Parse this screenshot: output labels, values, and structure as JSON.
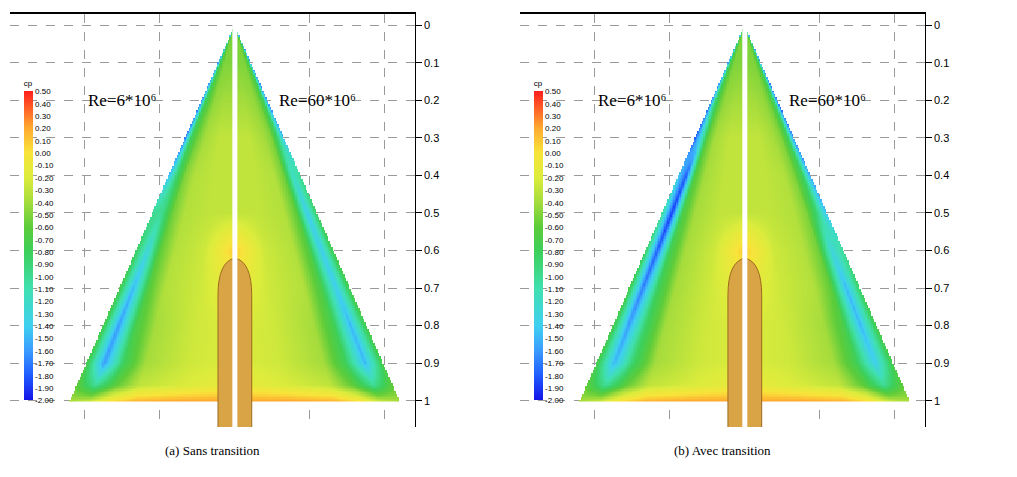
{
  "chart_data": [
    {
      "type": "heatmap",
      "caption": "(a) Sans transition",
      "xlim": [
        -0.6,
        0.48
      ],
      "xticks": [
        -0.4,
        -0.2,
        0.2,
        0.4
      ],
      "ylim": [
        1.07,
        -0.03
      ],
      "yticks": [
        0,
        0.1,
        0.2,
        0.3,
        0.4,
        0.5,
        0.6,
        0.7,
        0.8,
        0.9,
        1
      ],
      "grid": true,
      "tick_labels": "y",
      "colorbar": {
        "title": "cp",
        "range": [
          -2,
          0.5
        ],
        "ticks": [
          {
            "value": 0.5,
            "label": "0.50"
          },
          {
            "value": 0.4,
            "label": "0.40"
          },
          {
            "value": 0.3,
            "label": "0.30"
          },
          {
            "value": 0.2,
            "label": "0.20"
          },
          {
            "value": 0.1,
            "label": "0.10"
          },
          {
            "value": 0,
            "label": "0.00"
          },
          {
            "value": -0.1,
            "label": "-0.10"
          },
          {
            "value": -0.2,
            "label": "-0.20"
          },
          {
            "value": -0.3,
            "label": "-0.30"
          },
          {
            "value": -0.4,
            "label": "-0.40"
          },
          {
            "value": -0.5,
            "label": "-0.50"
          },
          {
            "value": -0.6,
            "label": "-0.60"
          },
          {
            "value": -0.7,
            "label": "-0.70"
          },
          {
            "value": -0.8,
            "label": "-0.80"
          },
          {
            "value": -0.9,
            "label": "-0.90"
          },
          {
            "value": -1.0,
            "label": "-1.00"
          },
          {
            "value": -1.1,
            "label": "-1.10"
          },
          {
            "value": -1.2,
            "label": "-1.20"
          },
          {
            "value": -1.3,
            "label": "-1.30"
          },
          {
            "value": -1.4,
            "label": "-1.40"
          },
          {
            "value": -1.5,
            "label": "-1.50"
          },
          {
            "value": -1.6,
            "label": "-1.60"
          },
          {
            "value": -1.7,
            "label": "-1.70"
          },
          {
            "value": -1.8,
            "label": "-1.80"
          },
          {
            "value": -1.9,
            "label": "-1.90"
          },
          {
            "value": -2.0,
            "label": "-2.00"
          }
        ]
      },
      "y_stations": [
        0.1,
        0.2,
        0.3,
        0.4,
        0.5,
        0.6,
        0.7,
        0.8,
        0.9,
        0.96,
        1.0
      ],
      "eta_stations": [
        0,
        0.3,
        0.6,
        0.75,
        0.88,
        1.0
      ],
      "halves": [
        {
          "name": "Re=6*10⁶",
          "cp": [
            [
              -0.5,
              -0.5,
              -0.5,
              -0.6,
              -0.8,
              -1.6
            ],
            [
              -0.4,
              -0.4,
              -0.45,
              -0.6,
              -0.8,
              -1.7
            ],
            [
              -0.3,
              -0.3,
              -0.4,
              -0.55,
              -0.8,
              -1.7
            ],
            [
              -0.3,
              -0.3,
              -0.35,
              -0.5,
              -0.9,
              -1.5
            ],
            [
              -0.3,
              -0.3,
              -0.35,
              -0.55,
              -1.0,
              -1.0
            ],
            [
              0.1,
              -0.25,
              -0.35,
              -0.6,
              -1.3,
              -0.8
            ],
            [
              -0.1,
              -0.25,
              -0.35,
              -0.65,
              -1.5,
              -0.7
            ],
            [
              -0.2,
              -0.25,
              -0.4,
              -0.7,
              -1.6,
              -0.7
            ],
            [
              -0.2,
              -0.25,
              -0.4,
              -0.8,
              -1.6,
              -0.7
            ],
            [
              -0.1,
              -0.2,
              -0.3,
              -0.6,
              -1.0,
              -0.6
            ],
            [
              0.2,
              0.2,
              0.15,
              0.0,
              -0.3,
              -0.4
            ]
          ]
        },
        {
          "name": "Re=60*10⁶",
          "cp": [
            [
              -0.5,
              -0.5,
              -0.5,
              -0.6,
              -0.8,
              -1.7
            ],
            [
              -0.4,
              -0.4,
              -0.45,
              -0.55,
              -0.8,
              -1.7
            ],
            [
              -0.3,
              -0.3,
              -0.4,
              -0.5,
              -0.9,
              -1.5
            ],
            [
              -0.3,
              -0.3,
              -0.35,
              -0.55,
              -1.2,
              -1.0
            ],
            [
              -0.3,
              -0.3,
              -0.35,
              -0.6,
              -1.4,
              -0.8
            ],
            [
              0.1,
              -0.25,
              -0.35,
              -0.65,
              -1.4,
              -0.7
            ],
            [
              -0.1,
              -0.25,
              -0.35,
              -0.7,
              -1.4,
              -0.7
            ],
            [
              -0.2,
              -0.25,
              -0.4,
              -0.75,
              -1.5,
              -0.7
            ],
            [
              -0.2,
              -0.25,
              -0.4,
              -0.8,
              -1.5,
              -0.7
            ],
            [
              -0.1,
              -0.2,
              -0.3,
              -0.6,
              -1.0,
              -0.6
            ],
            [
              0.2,
              0.2,
              0.15,
              0.0,
              -0.3,
              -0.4
            ]
          ]
        }
      ]
    },
    {
      "type": "heatmap",
      "caption": "(b) Avec transition",
      "xlim": [
        -0.6,
        0.48
      ],
      "xticks": [
        -0.4,
        -0.2,
        0.2,
        0.4
      ],
      "ylim": [
        1.07,
        -0.03
      ],
      "yticks": [
        0,
        0.1,
        0.2,
        0.3,
        0.4,
        0.5,
        0.6,
        0.7,
        0.8,
        0.9,
        1
      ],
      "grid": true,
      "tick_labels": "y",
      "colorbar": {
        "title": "cp",
        "range": [
          -2,
          0.5
        ],
        "ticks": [
          {
            "value": 0.5,
            "label": "0.50"
          },
          {
            "value": 0.4,
            "label": "0.40"
          },
          {
            "value": 0.3,
            "label": "0.30"
          },
          {
            "value": 0.2,
            "label": "0.20"
          },
          {
            "value": 0.1,
            "label": "0.10"
          },
          {
            "value": 0,
            "label": "0.00"
          },
          {
            "value": -0.1,
            "label": "-0.10"
          },
          {
            "value": -0.2,
            "label": "-0.20"
          },
          {
            "value": -0.3,
            "label": "-0.30"
          },
          {
            "value": -0.4,
            "label": "-0.40"
          },
          {
            "value": -0.5,
            "label": "-0.50"
          },
          {
            "value": -0.6,
            "label": "-0.60"
          },
          {
            "value": -0.7,
            "label": "-0.70"
          },
          {
            "value": -0.8,
            "label": "-0.80"
          },
          {
            "value": -0.9,
            "label": "-0.90"
          },
          {
            "value": -1.0,
            "label": "-1.00"
          },
          {
            "value": -1.1,
            "label": "-1.10"
          },
          {
            "value": -1.2,
            "label": "-1.20"
          },
          {
            "value": -1.3,
            "label": "-1.30"
          },
          {
            "value": -1.4,
            "label": "-1.40"
          },
          {
            "value": -1.5,
            "label": "-1.50"
          },
          {
            "value": -1.6,
            "label": "-1.60"
          },
          {
            "value": -1.7,
            "label": "-1.70"
          },
          {
            "value": -1.8,
            "label": "-1.80"
          },
          {
            "value": -1.9,
            "label": "-1.90"
          },
          {
            "value": -2.0,
            "label": "-2.00"
          }
        ]
      },
      "y_stations": [
        0.1,
        0.2,
        0.3,
        0.4,
        0.5,
        0.6,
        0.7,
        0.8,
        0.9,
        0.96,
        1.0
      ],
      "eta_stations": [
        0,
        0.3,
        0.6,
        0.75,
        0.88,
        1.0
      ],
      "halves": [
        {
          "name": "Re=6*10⁶",
          "cp": [
            [
              -0.5,
              -0.5,
              -0.5,
              -0.6,
              -0.8,
              -1.6
            ],
            [
              -0.4,
              -0.4,
              -0.45,
              -0.6,
              -0.9,
              -1.7
            ],
            [
              -0.3,
              -0.3,
              -0.4,
              -0.6,
              -1.3,
              -1.8
            ],
            [
              -0.3,
              -0.3,
              -0.4,
              -0.65,
              -1.8,
              -1.4
            ],
            [
              -0.3,
              -0.3,
              -0.4,
              -0.7,
              -1.9,
              -1.0
            ],
            [
              0.1,
              -0.25,
              -0.4,
              -0.75,
              -1.8,
              -0.8
            ],
            [
              -0.1,
              -0.25,
              -0.4,
              -0.8,
              -1.7,
              -0.7
            ],
            [
              -0.2,
              -0.25,
              -0.4,
              -0.85,
              -1.6,
              -0.7
            ],
            [
              -0.2,
              -0.25,
              -0.4,
              -0.85,
              -1.5,
              -0.7
            ],
            [
              -0.1,
              -0.2,
              -0.3,
              -0.6,
              -1.0,
              -0.6
            ],
            [
              0.2,
              0.2,
              0.15,
              0.0,
              -0.3,
              -0.4
            ]
          ]
        },
        {
          "name": "Re=60*10⁶",
          "cp": [
            [
              -0.5,
              -0.5,
              -0.5,
              -0.6,
              -0.8,
              -1.7
            ],
            [
              -0.4,
              -0.4,
              -0.45,
              -0.55,
              -0.8,
              -1.8
            ],
            [
              -0.3,
              -0.3,
              -0.4,
              -0.5,
              -0.8,
              -1.7
            ],
            [
              -0.3,
              -0.3,
              -0.35,
              -0.5,
              -0.8,
              -1.6
            ],
            [
              -0.3,
              -0.3,
              -0.35,
              -0.5,
              -0.9,
              -1.5
            ],
            [
              0.1,
              -0.25,
              -0.35,
              -0.55,
              -1.3,
              -1.0
            ],
            [
              -0.1,
              -0.25,
              -0.35,
              -0.6,
              -1.5,
              -0.8
            ],
            [
              -0.2,
              -0.25,
              -0.4,
              -0.7,
              -1.5,
              -0.7
            ],
            [
              -0.2,
              -0.25,
              -0.4,
              -0.75,
              -1.4,
              -0.7
            ],
            [
              -0.1,
              -0.2,
              -0.3,
              -0.6,
              -1.0,
              -0.6
            ],
            [
              0.2,
              0.2,
              0.15,
              0.0,
              -0.3,
              -0.4
            ]
          ]
        }
      ]
    }
  ]
}
